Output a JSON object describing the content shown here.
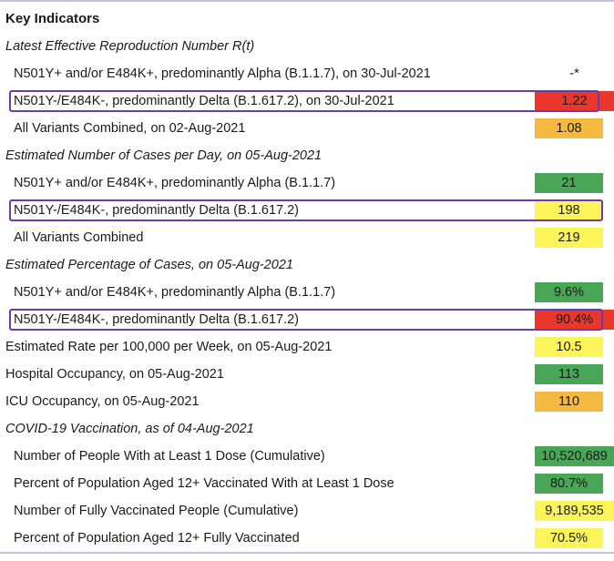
{
  "rows": [
    {
      "kind": "heading",
      "label": "Key Indicators",
      "value": "",
      "color": ""
    },
    {
      "kind": "section",
      "label": "Latest Effective Reproduction Number R(t)",
      "value": "",
      "color": ""
    },
    {
      "kind": "sub",
      "label": "N501Y+ and/or E484K+, predominantly Alpha (B.1.1.7), on 30-Jul-2021",
      "value": "-*",
      "color": "#ffffff"
    },
    {
      "kind": "sub",
      "label": "N501Y-/E484K-, predominantly Delta (B.1.617.2), on 30-Jul-2021",
      "value": "1.22",
      "color": "#e8382c",
      "highlighted": true
    },
    {
      "kind": "sub",
      "label": "All Variants Combined, on 02-Aug-2021",
      "value": "1.08",
      "color": "#f5b942"
    },
    {
      "kind": "section",
      "label": "Estimated Number of Cases per Day, on 05-Aug-2021",
      "value": "",
      "color": ""
    },
    {
      "kind": "sub",
      "label": "N501Y+ and/or E484K+, predominantly Alpha (B.1.1.7)",
      "value": "21",
      "color": "#4aa657"
    },
    {
      "kind": "sub",
      "label": "N501Y-/E484K-, predominantly Delta (B.1.617.2)",
      "value": "198",
      "color": "#fbf55a",
      "highlighted": true
    },
    {
      "kind": "sub",
      "label": "All Variants Combined",
      "value": "219",
      "color": "#fbf55a"
    },
    {
      "kind": "section",
      "label": "Estimated Percentage of Cases, on 05-Aug-2021",
      "value": "",
      "color": ""
    },
    {
      "kind": "sub",
      "label": "N501Y+ and/or E484K+, predominantly Alpha (B.1.1.7)",
      "value": "9.6%",
      "color": "#4aa657"
    },
    {
      "kind": "sub",
      "label": "N501Y-/E484K-, predominantly Delta (B.1.617.2)",
      "value": "90.4%",
      "color": "#e8382c",
      "highlighted": true
    },
    {
      "kind": "flat",
      "label": "Estimated Rate per 100,000 per Week, on 05-Aug-2021",
      "value": "10.5",
      "color": "#fbf55a"
    },
    {
      "kind": "flat",
      "label": "Hospital Occupancy, on 05-Aug-2021",
      "value": "113",
      "color": "#4aa657"
    },
    {
      "kind": "flat",
      "label": "ICU Occupancy, on 05-Aug-2021",
      "value": "110",
      "color": "#f5b942"
    },
    {
      "kind": "section",
      "label": "COVID-19 Vaccination, as of 04-Aug-2021",
      "value": "",
      "color": ""
    },
    {
      "kind": "sub",
      "label": "Number of People With at Least 1 Dose (Cumulative)",
      "value": "10,520,689",
      "color": "#4aa657"
    },
    {
      "kind": "sub",
      "label": "Percent of Population Aged 12+ Vaccinated With at Least 1 Dose",
      "value": "80.7%",
      "color": "#4aa657"
    },
    {
      "kind": "sub",
      "label": "Number of Fully Vaccinated People (Cumulative)",
      "value": "9,189,535",
      "color": "#fbf55a"
    },
    {
      "kind": "sub",
      "label": "Percent of Population Aged 12+ Fully Vaccinated",
      "value": "70.5%",
      "color": "#fbf55a"
    }
  ]
}
